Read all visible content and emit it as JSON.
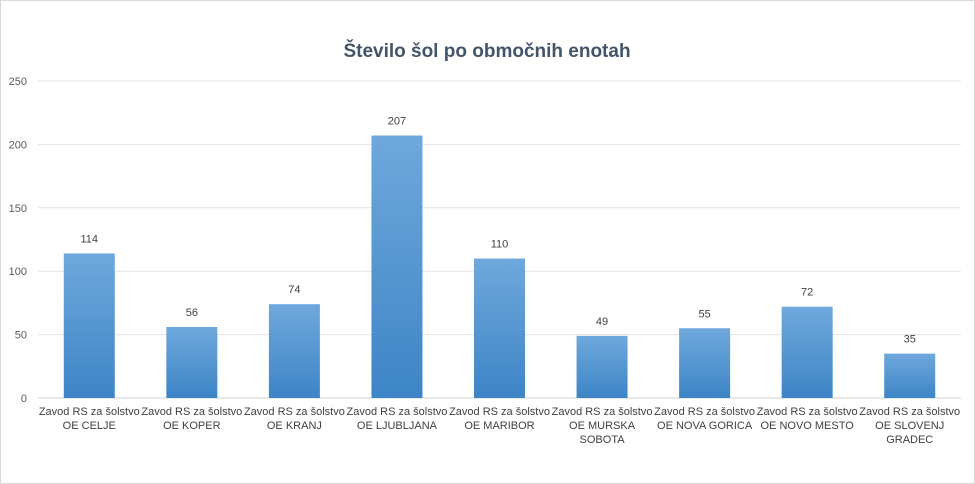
{
  "chart_data": {
    "type": "bar",
    "title": "Število šol po območnih  enotah",
    "xlabel": "",
    "ylabel": "",
    "ylim": [
      0,
      250
    ],
    "yticks": [
      0,
      50,
      100,
      150,
      200,
      250
    ],
    "grid": true,
    "legend": "none",
    "bar_color_top": "#6fa8dc",
    "bar_color_bottom": "#3d85c6",
    "categories": [
      [
        "Zavod RS za šolstvo",
        "OE  CELJE"
      ],
      [
        "Zavod RS za šolstvo",
        "OE  KOPER"
      ],
      [
        "Zavod RS za šolstvo",
        "OE  KRANJ"
      ],
      [
        "Zavod RS za šolstvo",
        "OE  LJUBLJANA"
      ],
      [
        "Zavod RS za šolstvo",
        "OE  MARIBOR"
      ],
      [
        "Zavod RS za šolstvo",
        "OE  MURSKA",
        "SOBOTA"
      ],
      [
        "Zavod RS za šolstvo",
        "OE  NOVA GORICA"
      ],
      [
        "Zavod RS za šolstvo",
        "OE  NOVO MESTO"
      ],
      [
        "Zavod RS za šolstvo",
        "OE  SLOVENJ",
        "GRADEC"
      ]
    ],
    "values": [
      114,
      56,
      74,
      207,
      110,
      49,
      55,
      72,
      35
    ]
  }
}
